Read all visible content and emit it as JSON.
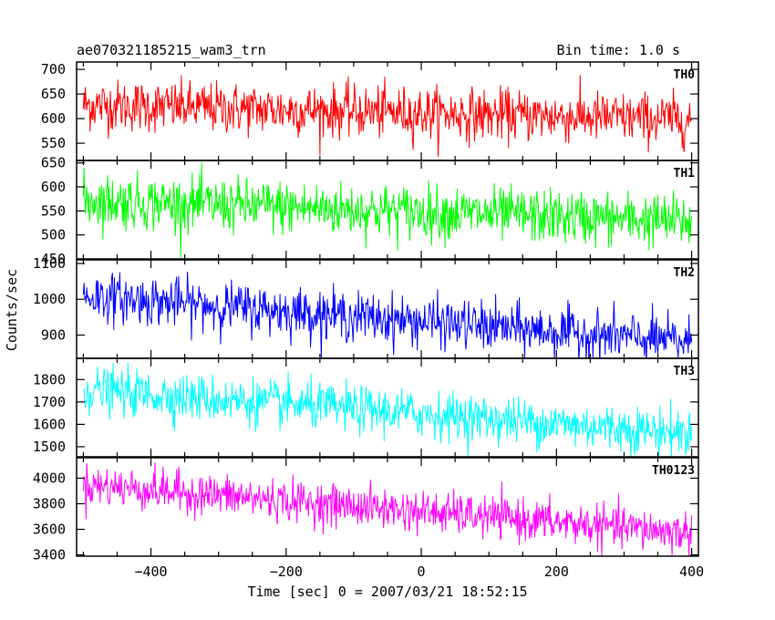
{
  "header": {
    "left_title": "ae070321185215_wam3_trn",
    "right_title": "Bin time: 1.0 s"
  },
  "axes": {
    "xlabel": "Time [sec] 0 = 2007/03/21 18:52:15",
    "ylabel": "Counts/sec"
  },
  "chart_data": {
    "type": "line",
    "xlim": [
      -510,
      410
    ],
    "x_ticks": [
      -400,
      -200,
      0,
      200,
      400
    ],
    "x_range": [
      -500,
      400
    ],
    "bin_time": 1.0,
    "grid": false,
    "panels": [
      {
        "name": "TH0",
        "color": "#ff0000",
        "ylim": [
          515,
          715
        ],
        "y_ticks": [
          550,
          600,
          650,
          700
        ],
        "trend": {
          "start": 628,
          "end": 598
        },
        "noise_sd": 26
      },
      {
        "name": "TH1",
        "color": "#00ff00",
        "ylim": [
          450,
          655
        ],
        "y_ticks": [
          450,
          500,
          550,
          600,
          650
        ],
        "trend": {
          "start": 572,
          "end": 528
        },
        "noise_sd": 28
      },
      {
        "name": "TH2",
        "color": "#0000ff",
        "ylim": [
          835,
          1110
        ],
        "y_ticks": [
          900,
          1000,
          1100
        ],
        "trend": {
          "start": 1010,
          "end": 880
        },
        "noise_sd": 34
      },
      {
        "name": "TH3",
        "color": "#00ffff",
        "ylim": [
          1455,
          1895
        ],
        "y_ticks": [
          1500,
          1600,
          1700,
          1800
        ],
        "trend": {
          "start": 1755,
          "end": 1560
        },
        "noise_sd": 52
      },
      {
        "name": "TH0123",
        "color": "#ff00ff",
        "ylim": [
          3390,
          4160
        ],
        "y_ticks": [
          3400,
          3600,
          3800,
          4000
        ],
        "trend": {
          "start": 3950,
          "end": 3570
        },
        "noise_sd": 80
      }
    ]
  }
}
